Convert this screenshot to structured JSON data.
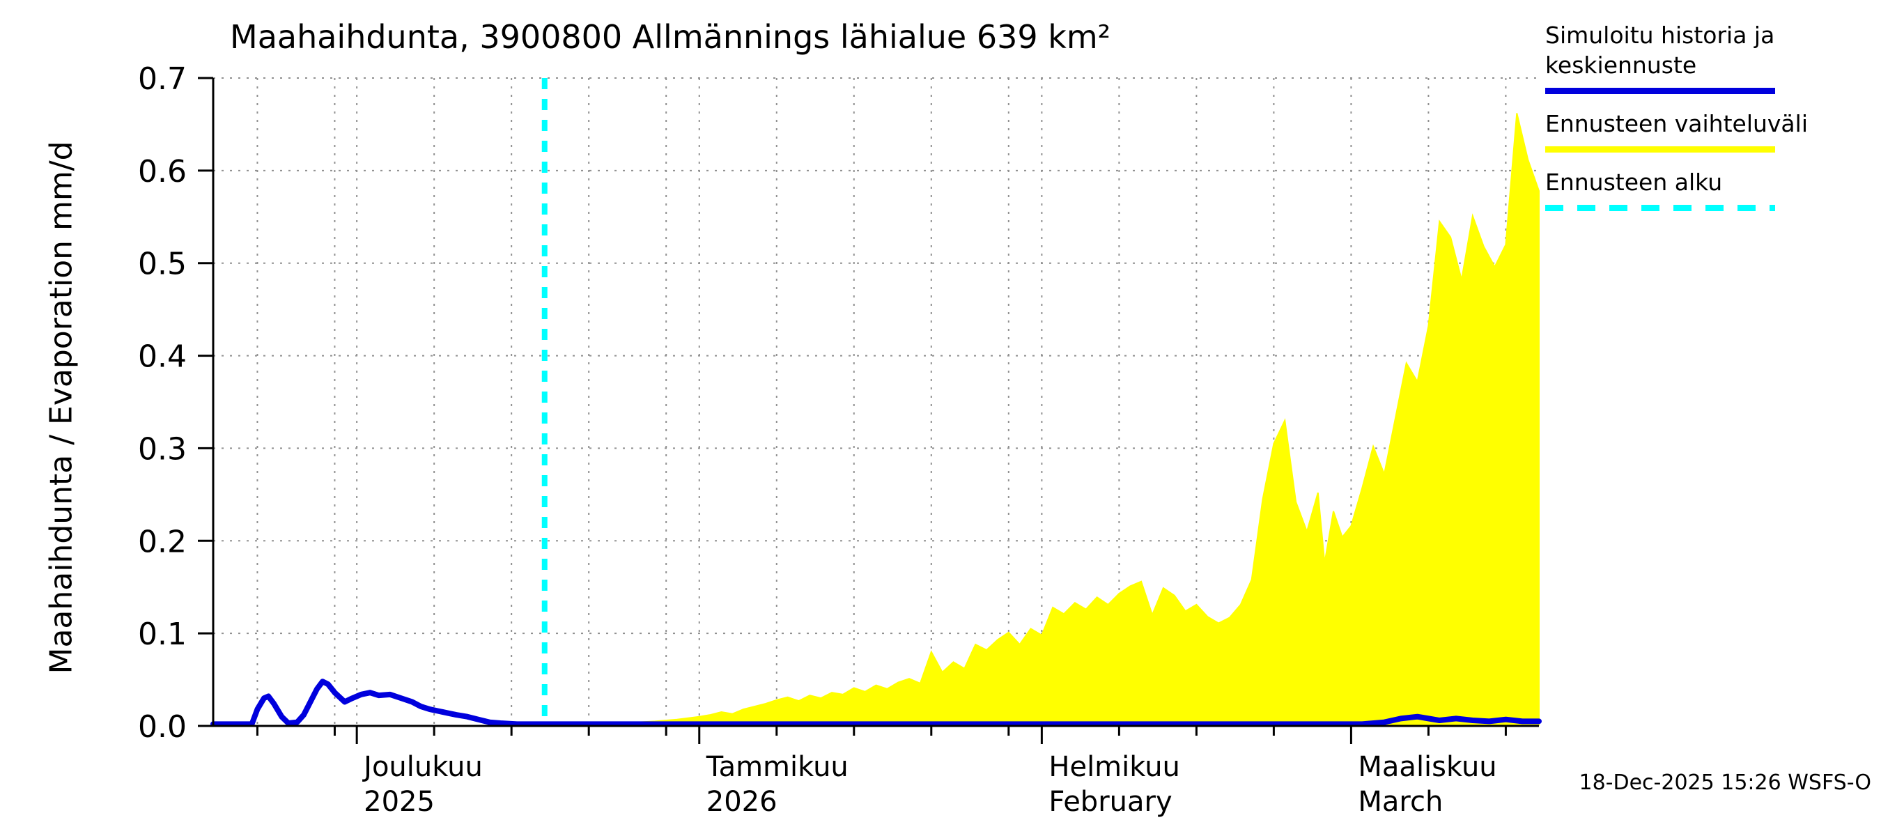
{
  "datestamp": "18-Dec-2025 15:26 WSFS-O",
  "legend": {
    "history_label": "Simuloitu historia ja\nkeskiennuste",
    "range_label": "Ennusteen vaihteluväli",
    "start_label": "Ennusteen alku"
  },
  "colors": {
    "history_line": "#0000dd",
    "forecast_band": "#ffff00",
    "forecast_start": "#00ffff",
    "axis": "#000000",
    "grid": "#909090"
  },
  "chart_data": {
    "type": "area",
    "title": "Maahaihdunta, 3900800 Allmännings lähialue 639 km²",
    "ylabel": "Maahaihdunta / Evaporation   mm/d",
    "xlabel": "",
    "x_unit": "days since 2025-11-18",
    "x_range": [
      0,
      120
    ],
    "y_range": [
      0,
      0.7
    ],
    "y_ticks": [
      "0.0",
      "0.1",
      "0.2",
      "0.3",
      "0.4",
      "0.5",
      "0.6",
      "0.7"
    ],
    "forecast_start_day": 30,
    "grid": "dotted",
    "legend_position": "top-right",
    "months": [
      {
        "day": 13,
        "line1": "Joulukuu",
        "line2": "2025"
      },
      {
        "day": 44,
        "line1": "Tammikuu",
        "line2": "2026"
      },
      {
        "day": 75,
        "line1": "Helmikuu",
        "line2": "February"
      },
      {
        "day": 103,
        "line1": "Maaliskuu",
        "line2": "March"
      }
    ],
    "minor_tick_days": [
      4,
      11,
      20,
      27,
      34,
      41,
      51,
      58,
      65,
      72,
      82,
      89,
      96,
      110,
      117
    ],
    "series": [
      {
        "name": "Simuloitu historia ja keskiennuste",
        "type": "line",
        "color": "#0000dd",
        "points": [
          [
            0,
            0.002
          ],
          [
            3.5,
            0.002
          ],
          [
            4,
            0.018
          ],
          [
            4.6,
            0.03
          ],
          [
            5,
            0.032
          ],
          [
            5.5,
            0.024
          ],
          [
            6.2,
            0.01
          ],
          [
            6.8,
            0.003
          ],
          [
            7.6,
            0.004
          ],
          [
            8.2,
            0.012
          ],
          [
            8.8,
            0.026
          ],
          [
            9.4,
            0.04
          ],
          [
            9.9,
            0.048
          ],
          [
            10.4,
            0.045
          ],
          [
            11,
            0.036
          ],
          [
            11.9,
            0.026
          ],
          [
            12.6,
            0.03
          ],
          [
            13.4,
            0.034
          ],
          [
            14.2,
            0.036
          ],
          [
            15,
            0.033
          ],
          [
            16,
            0.034
          ],
          [
            17,
            0.03
          ],
          [
            18,
            0.026
          ],
          [
            18.8,
            0.021
          ],
          [
            19.6,
            0.018
          ],
          [
            20.4,
            0.016
          ],
          [
            21.2,
            0.014
          ],
          [
            22,
            0.012
          ],
          [
            23,
            0.01
          ],
          [
            24,
            0.007
          ],
          [
            25,
            0.004
          ],
          [
            26,
            0.003
          ],
          [
            27.5,
            0.002
          ],
          [
            30,
            0.002
          ],
          [
            45,
            0.002
          ],
          [
            60,
            0.002
          ],
          [
            75,
            0.002
          ],
          [
            90,
            0.002
          ],
          [
            100,
            0.002
          ],
          [
            104,
            0.002
          ],
          [
            106,
            0.004
          ],
          [
            107.5,
            0.008
          ],
          [
            109,
            0.01
          ],
          [
            110,
            0.008
          ],
          [
            111,
            0.006
          ],
          [
            112.5,
            0.008
          ],
          [
            114,
            0.006
          ],
          [
            115.5,
            0.005
          ],
          [
            117,
            0.007
          ],
          [
            118.5,
            0.005
          ],
          [
            120,
            0.005
          ]
        ]
      },
      {
        "name": "Ennusteen vaihteluväli",
        "type": "band",
        "color": "#ffff00",
        "lower": 0.001,
        "points": [
          [
            30,
            0.002
          ],
          [
            34,
            0.002
          ],
          [
            37,
            0.003
          ],
          [
            40,
            0.005
          ],
          [
            42,
            0.007
          ],
          [
            44,
            0.01
          ],
          [
            45,
            0.012
          ],
          [
            46,
            0.015
          ],
          [
            47,
            0.013
          ],
          [
            48,
            0.018
          ],
          [
            49,
            0.021
          ],
          [
            50,
            0.024
          ],
          [
            51,
            0.028
          ],
          [
            52,
            0.031
          ],
          [
            53,
            0.027
          ],
          [
            54,
            0.033
          ],
          [
            55,
            0.03
          ],
          [
            56,
            0.036
          ],
          [
            57,
            0.034
          ],
          [
            58,
            0.041
          ],
          [
            59,
            0.037
          ],
          [
            60,
            0.044
          ],
          [
            61,
            0.04
          ],
          [
            62,
            0.047
          ],
          [
            63,
            0.051
          ],
          [
            64,
            0.046
          ],
          [
            65,
            0.08
          ],
          [
            66,
            0.058
          ],
          [
            67,
            0.069
          ],
          [
            68,
            0.062
          ],
          [
            69,
            0.088
          ],
          [
            70,
            0.082
          ],
          [
            71,
            0.093
          ],
          [
            72,
            0.101
          ],
          [
            73,
            0.088
          ],
          [
            74,
            0.105
          ],
          [
            75,
            0.098
          ],
          [
            76,
            0.128
          ],
          [
            77,
            0.121
          ],
          [
            78,
            0.133
          ],
          [
            79,
            0.126
          ],
          [
            80,
            0.139
          ],
          [
            81,
            0.131
          ],
          [
            82,
            0.143
          ],
          [
            83,
            0.151
          ],
          [
            84,
            0.156
          ],
          [
            85,
            0.12
          ],
          [
            86,
            0.149
          ],
          [
            87,
            0.141
          ],
          [
            88,
            0.124
          ],
          [
            89,
            0.131
          ],
          [
            90,
            0.118
          ],
          [
            91,
            0.111
          ],
          [
            92,
            0.117
          ],
          [
            93,
            0.131
          ],
          [
            94,
            0.158
          ],
          [
            95,
            0.245
          ],
          [
            96,
            0.305
          ],
          [
            97,
            0.33
          ],
          [
            98,
            0.242
          ],
          [
            99,
            0.21
          ],
          [
            100,
            0.252
          ],
          [
            100.6,
            0.176
          ],
          [
            101.4,
            0.232
          ],
          [
            102.2,
            0.204
          ],
          [
            103,
            0.216
          ],
          [
            104,
            0.257
          ],
          [
            105,
            0.302
          ],
          [
            106,
            0.272
          ],
          [
            107,
            0.332
          ],
          [
            108,
            0.392
          ],
          [
            109,
            0.372
          ],
          [
            110,
            0.432
          ],
          [
            111,
            0.545
          ],
          [
            112,
            0.528
          ],
          [
            113,
            0.482
          ],
          [
            114,
            0.551
          ],
          [
            115,
            0.518
          ],
          [
            116,
            0.496
          ],
          [
            117,
            0.52
          ],
          [
            118,
            0.662
          ],
          [
            119,
            0.612
          ],
          [
            120,
            0.578
          ]
        ]
      }
    ]
  }
}
